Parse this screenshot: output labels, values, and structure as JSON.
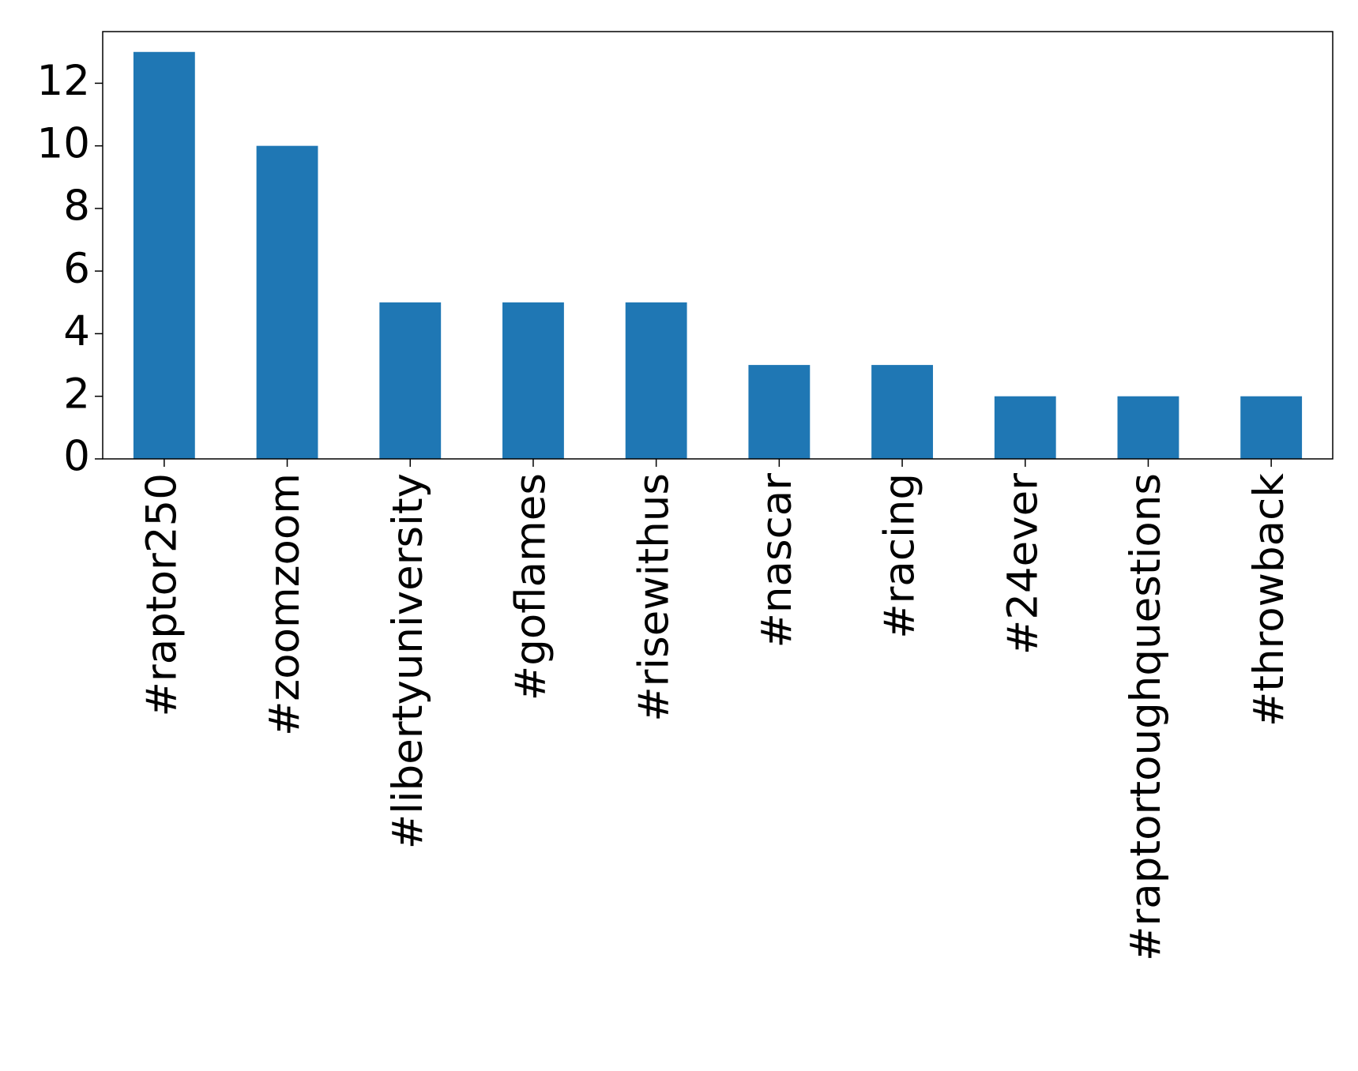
{
  "chart_data": {
    "type": "bar",
    "categories": [
      "#raptor250",
      "#zoomzoom",
      "#libertyuniversity",
      "#goflames",
      "#risewithus",
      "#nascar",
      "#racing",
      "#24ever",
      "#raptortoughquestions",
      "#throwback"
    ],
    "values": [
      13,
      10,
      5,
      5,
      5,
      3,
      3,
      2,
      2,
      2
    ],
    "color": "#1f77b4",
    "ylim": [
      0,
      13.65
    ],
    "yticks": [
      0,
      2,
      4,
      6,
      8,
      10,
      12
    ],
    "grid": false
  }
}
